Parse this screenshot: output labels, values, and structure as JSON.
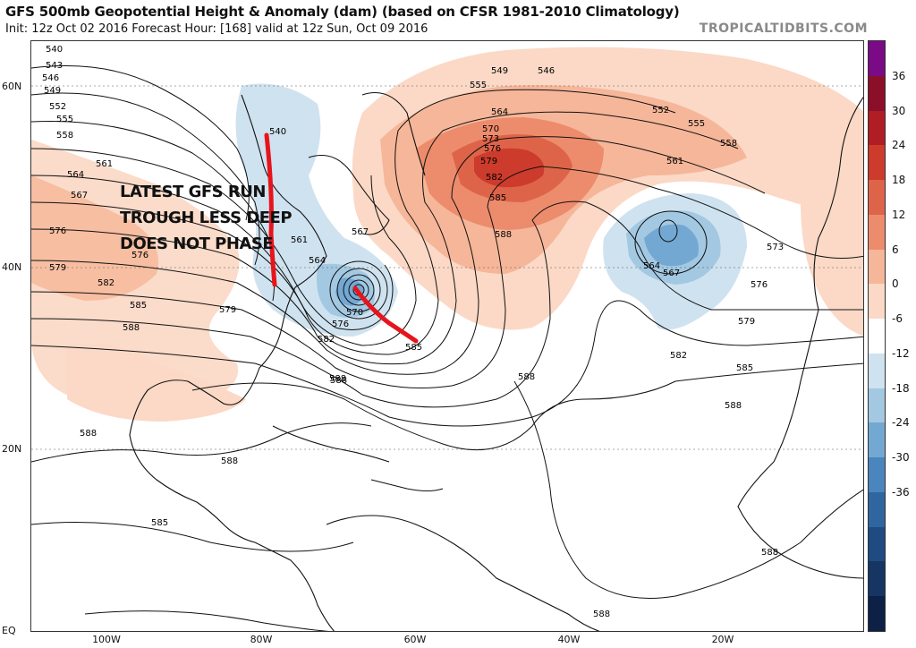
{
  "header": {
    "title": "GFS 500mb Geopotential Height & Anomaly (dam) (based on CFSR 1981-2010 Climatology)",
    "subtitle": "Init: 12z Oct 02 2016   Forecast Hour: [168]   valid at 12z Sun, Oct 09 2016",
    "brand": "TROPICALTIDBITS.COM"
  },
  "latitude_labels": [
    "60N",
    "40N",
    "20N",
    "EQ"
  ],
  "longitude_labels": [
    "100W",
    "80W",
    "60W",
    "40W",
    "20W"
  ],
  "annotation": {
    "line1": "LATEST GFS RUN",
    "line2": "TROUGH LESS DEEP",
    "line3": "DOES NOT PHASE",
    "stroke_color": "#e8141c"
  },
  "contour_labels": [
    "540",
    "543",
    "546",
    "549",
    "552",
    "555",
    "558",
    "561",
    "564",
    "567",
    "570",
    "573",
    "576",
    "579",
    "582",
    "585",
    "588"
  ],
  "colorbar": {
    "ticks": [
      "36",
      "30",
      "24",
      "18",
      "12",
      "6",
      "0",
      "-6",
      "-12",
      "-18",
      "-24",
      "-30",
      "-36"
    ],
    "colors": [
      "#7a0a86",
      "#8c0f2a",
      "#b01d24",
      "#cc3b2c",
      "#de6449",
      "#ec8c6c",
      "#f6b699",
      "#fbd9c6",
      "#ffffff",
      "#cfe2ef",
      "#a3c8e2",
      "#73a8d2",
      "#4a86bd",
      "#2f669f",
      "#1f4b82",
      "#163563",
      "#0d2147"
    ]
  }
}
